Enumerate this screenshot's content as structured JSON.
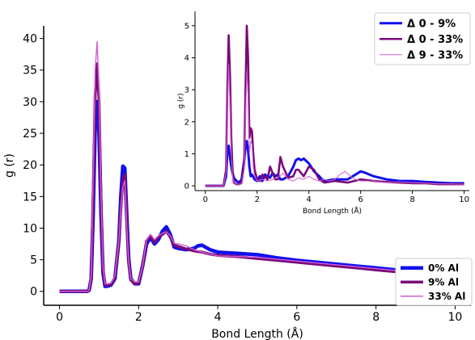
{
  "chart_data": [
    {
      "id": "main",
      "type": "line",
      "xlabel": "Bond Length (Å)",
      "ylabel": "g (r)",
      "xlim": [
        -0.4,
        10.4
      ],
      "ylim": [
        -2.2,
        42
      ],
      "xticks": [
        0,
        2,
        4,
        6,
        8,
        10
      ],
      "yticks": [
        0,
        5,
        10,
        15,
        20,
        25,
        30,
        35,
        40
      ],
      "grid": false,
      "legend_position": "bottom-right",
      "series": [
        {
          "name": "0% Al",
          "color": "#1010ee",
          "x": [
            0,
            0.7,
            0.75,
            0.8,
            0.85,
            0.9,
            0.95,
            1.0,
            1.05,
            1.1,
            1.15,
            1.2,
            1.3,
            1.4,
            1.5,
            1.55,
            1.6,
            1.65,
            1.7,
            1.75,
            1.8,
            1.9,
            2.0,
            2.1,
            2.2,
            2.3,
            2.4,
            2.5,
            2.6,
            2.7,
            2.8,
            2.9,
            3.0,
            3.2,
            3.4,
            3.5,
            3.6,
            3.8,
            4.0,
            4.5,
            5.0,
            5.5,
            6.0,
            6.5,
            7.0,
            7.5,
            8.0,
            8.5,
            9.0,
            9.5,
            10.0,
            10.3
          ],
          "y": [
            0,
            0,
            0.2,
            2,
            12,
            26,
            30,
            25,
            12,
            3,
            0.8,
            0.8,
            1.0,
            2,
            8,
            15,
            19.8,
            19.5,
            12,
            5,
            2,
            1.2,
            1.2,
            4,
            7.5,
            8.5,
            7.5,
            8.2,
            9.5,
            10.2,
            9.0,
            7.0,
            6.8,
            6.6,
            6.8,
            7.2,
            7.3,
            6.6,
            6.2,
            6.0,
            5.8,
            5.3,
            4.9,
            4.6,
            4.3,
            4.0,
            3.7,
            3.4,
            3.1,
            2.8,
            2.5,
            2.3
          ]
        },
        {
          "name": "9% Al",
          "color": "#7a0a7a",
          "x": [
            0,
            0.7,
            0.75,
            0.8,
            0.85,
            0.9,
            0.95,
            1.0,
            1.05,
            1.1,
            1.15,
            1.2,
            1.3,
            1.4,
            1.5,
            1.55,
            1.6,
            1.65,
            1.7,
            1.75,
            1.8,
            1.9,
            2.0,
            2.1,
            2.2,
            2.3,
            2.4,
            2.5,
            2.6,
            2.7,
            2.8,
            2.9,
            3.0,
            3.2,
            3.4,
            3.5,
            3.6,
            3.8,
            4.0,
            4.5,
            5.0,
            5.5,
            6.0,
            6.5,
            7.0,
            7.5,
            8.0,
            8.5,
            9.0,
            9.5,
            10.0,
            10.3
          ],
          "y": [
            0,
            0,
            0.2,
            2,
            15,
            31,
            36,
            30,
            14,
            3.5,
            1.0,
            1.0,
            1.1,
            2.2,
            8,
            13,
            17.5,
            18.5,
            11,
            4.5,
            1.8,
            1.2,
            1.3,
            4,
            8.0,
            8.8,
            7.8,
            8.6,
            9.0,
            9.5,
            8.6,
            7.3,
            7.1,
            6.7,
            6.4,
            6.3,
            6.2,
            5.9,
            5.7,
            5.5,
            5.2,
            4.9,
            4.6,
            4.3,
            4.0,
            3.7,
            3.4,
            3.1,
            2.8,
            2.6,
            2.4,
            2.2
          ]
        },
        {
          "name": "33% Al",
          "color": "#d35fd3",
          "x": [
            0,
            0.7,
            0.75,
            0.8,
            0.85,
            0.9,
            0.95,
            1.0,
            1.05,
            1.1,
            1.15,
            1.2,
            1.3,
            1.4,
            1.5,
            1.55,
            1.6,
            1.65,
            1.7,
            1.75,
            1.8,
            1.9,
            2.0,
            2.1,
            2.2,
            2.3,
            2.4,
            2.5,
            2.6,
            2.7,
            2.8,
            2.9,
            3.0,
            3.2,
            3.4,
            3.5,
            3.6,
            3.8,
            4.0,
            4.5,
            5.0,
            5.5,
            6.0,
            6.5,
            7.0,
            7.5,
            8.0,
            8.5,
            9.0,
            9.5,
            10.0,
            10.3
          ],
          "y": [
            0,
            0,
            0.2,
            2.5,
            18,
            35,
            39.5,
            32,
            15,
            4,
            1.2,
            1.2,
            1.3,
            2.5,
            8,
            13,
            16.5,
            17.5,
            10,
            4.5,
            2,
            1.5,
            1.5,
            4,
            8.2,
            9.0,
            8.2,
            8.8,
            9.2,
            9.4,
            8.8,
            7.6,
            7.5,
            7.2,
            6.6,
            6.4,
            6.2,
            5.9,
            5.6,
            5.5,
            5.4,
            5.1,
            4.8,
            4.5,
            4.2,
            3.9,
            3.6,
            3.3,
            3.0,
            2.8,
            2.6,
            2.4
          ]
        }
      ]
    },
    {
      "id": "inset",
      "type": "line",
      "xlabel": "Bond Length (Å)",
      "ylabel": "g (r)",
      "xlim": [
        -0.4,
        10.2
      ],
      "ylim": [
        -0.15,
        5.45
      ],
      "xticks": [
        0,
        2,
        4,
        6,
        8,
        10
      ],
      "yticks": [
        0,
        1,
        2,
        3,
        4,
        5
      ],
      "grid": false,
      "legend_position": "top-right",
      "series": [
        {
          "name": "Δ 0 - 9%",
          "color": "#1010ee",
          "x": [
            0,
            0.7,
            0.8,
            0.85,
            0.9,
            0.95,
            1.0,
            1.05,
            1.1,
            1.2,
            1.3,
            1.4,
            1.5,
            1.55,
            1.6,
            1.65,
            1.7,
            1.75,
            1.8,
            1.9,
            2.0,
            2.1,
            2.2,
            2.3,
            2.5,
            2.6,
            2.7,
            2.8,
            2.9,
            3.0,
            3.2,
            3.4,
            3.5,
            3.6,
            3.7,
            3.8,
            4.0,
            4.2,
            4.4,
            4.5,
            4.6,
            5.0,
            5.5,
            5.8,
            6.0,
            6.2,
            6.5,
            7.0,
            7.5,
            8.0,
            8.5,
            9.0,
            9.5,
            10.0
          ],
          "y": [
            0,
            0,
            0.3,
            1.1,
            1.25,
            0.9,
            0.6,
            0.4,
            0.25,
            0.15,
            0.1,
            0.2,
            0.8,
            1.2,
            1.4,
            1.1,
            0.6,
            0.3,
            0.35,
            0.2,
            0.15,
            0.3,
            0.15,
            0.35,
            0.25,
            0.4,
            0.3,
            0.35,
            0.2,
            0.2,
            0.3,
            0.6,
            0.8,
            0.85,
            0.8,
            0.85,
            0.7,
            0.45,
            0.3,
            0.2,
            0.15,
            0.2,
            0.2,
            0.35,
            0.45,
            0.4,
            0.3,
            0.2,
            0.15,
            0.15,
            0.12,
            0.1,
            0.08,
            0.08
          ]
        },
        {
          "name": "Δ 0 - 33%",
          "color": "#7a0a7a",
          "x": [
            0,
            0.7,
            0.8,
            0.85,
            0.9,
            0.95,
            1.0,
            1.05,
            1.1,
            1.2,
            1.3,
            1.4,
            1.5,
            1.55,
            1.6,
            1.65,
            1.7,
            1.75,
            1.8,
            1.85,
            1.9,
            2.0,
            2.1,
            2.2,
            2.4,
            2.5,
            2.6,
            2.7,
            2.8,
            2.9,
            3.0,
            3.2,
            3.4,
            3.5,
            3.6,
            3.8,
            4.0,
            4.2,
            4.4,
            4.5,
            4.6,
            5.0,
            5.5,
            6.0,
            6.5,
            7.0,
            7.5,
            8.0,
            8.5,
            9.0,
            9.5,
            10.0
          ],
          "y": [
            0,
            0,
            0.5,
            3.0,
            4.7,
            3.5,
            1.5,
            0.5,
            0.1,
            0.05,
            0.05,
            0.1,
            0.7,
            3.0,
            5.0,
            4.0,
            1.5,
            1.8,
            1.7,
            1.0,
            0.5,
            0.2,
            0.15,
            0.35,
            0.2,
            0.6,
            0.4,
            0.2,
            0.2,
            0.9,
            0.6,
            0.25,
            0.3,
            0.5,
            0.5,
            0.3,
            0.6,
            0.5,
            0.2,
            0.15,
            0.1,
            0.15,
            0.1,
            0.2,
            0.15,
            0.12,
            0.1,
            0.08,
            0.08,
            0.05,
            0.05,
            0.05
          ]
        },
        {
          "name": "Δ 9 - 33%",
          "color": "#d35fd3",
          "x": [
            0,
            0.7,
            0.8,
            0.85,
            0.9,
            0.95,
            1.0,
            1.05,
            1.1,
            1.2,
            1.4,
            1.5,
            1.55,
            1.6,
            1.65,
            1.7,
            1.75,
            1.8,
            1.85,
            1.9,
            2.0,
            2.2,
            2.4,
            2.6,
            2.8,
            3.0,
            3.2,
            3.4,
            3.6,
            3.8,
            4.0,
            4.2,
            4.4,
            4.6,
            4.8,
            5.0,
            5.2,
            5.4,
            5.6,
            5.8,
            6.0,
            6.5,
            7.0,
            7.5,
            8.0,
            8.5,
            9.0,
            9.5,
            10.0
          ],
          "y": [
            0,
            0,
            0.4,
            2.5,
            3.8,
            2.6,
            1.0,
            0.3,
            0.1,
            0.05,
            0.05,
            0.5,
            2.2,
            3.6,
            2.8,
            1.0,
            1.4,
            1.3,
            0.6,
            0.3,
            0.15,
            0.2,
            0.15,
            0.2,
            0.25,
            0.4,
            0.2,
            0.15,
            0.25,
            0.2,
            0.3,
            0.2,
            0.15,
            0.2,
            0.15,
            0.2,
            0.35,
            0.45,
            0.3,
            0.2,
            0.15,
            0.15,
            0.1,
            0.12,
            0.1,
            0.08,
            0.06,
            0.06,
            0.05
          ]
        }
      ]
    }
  ]
}
